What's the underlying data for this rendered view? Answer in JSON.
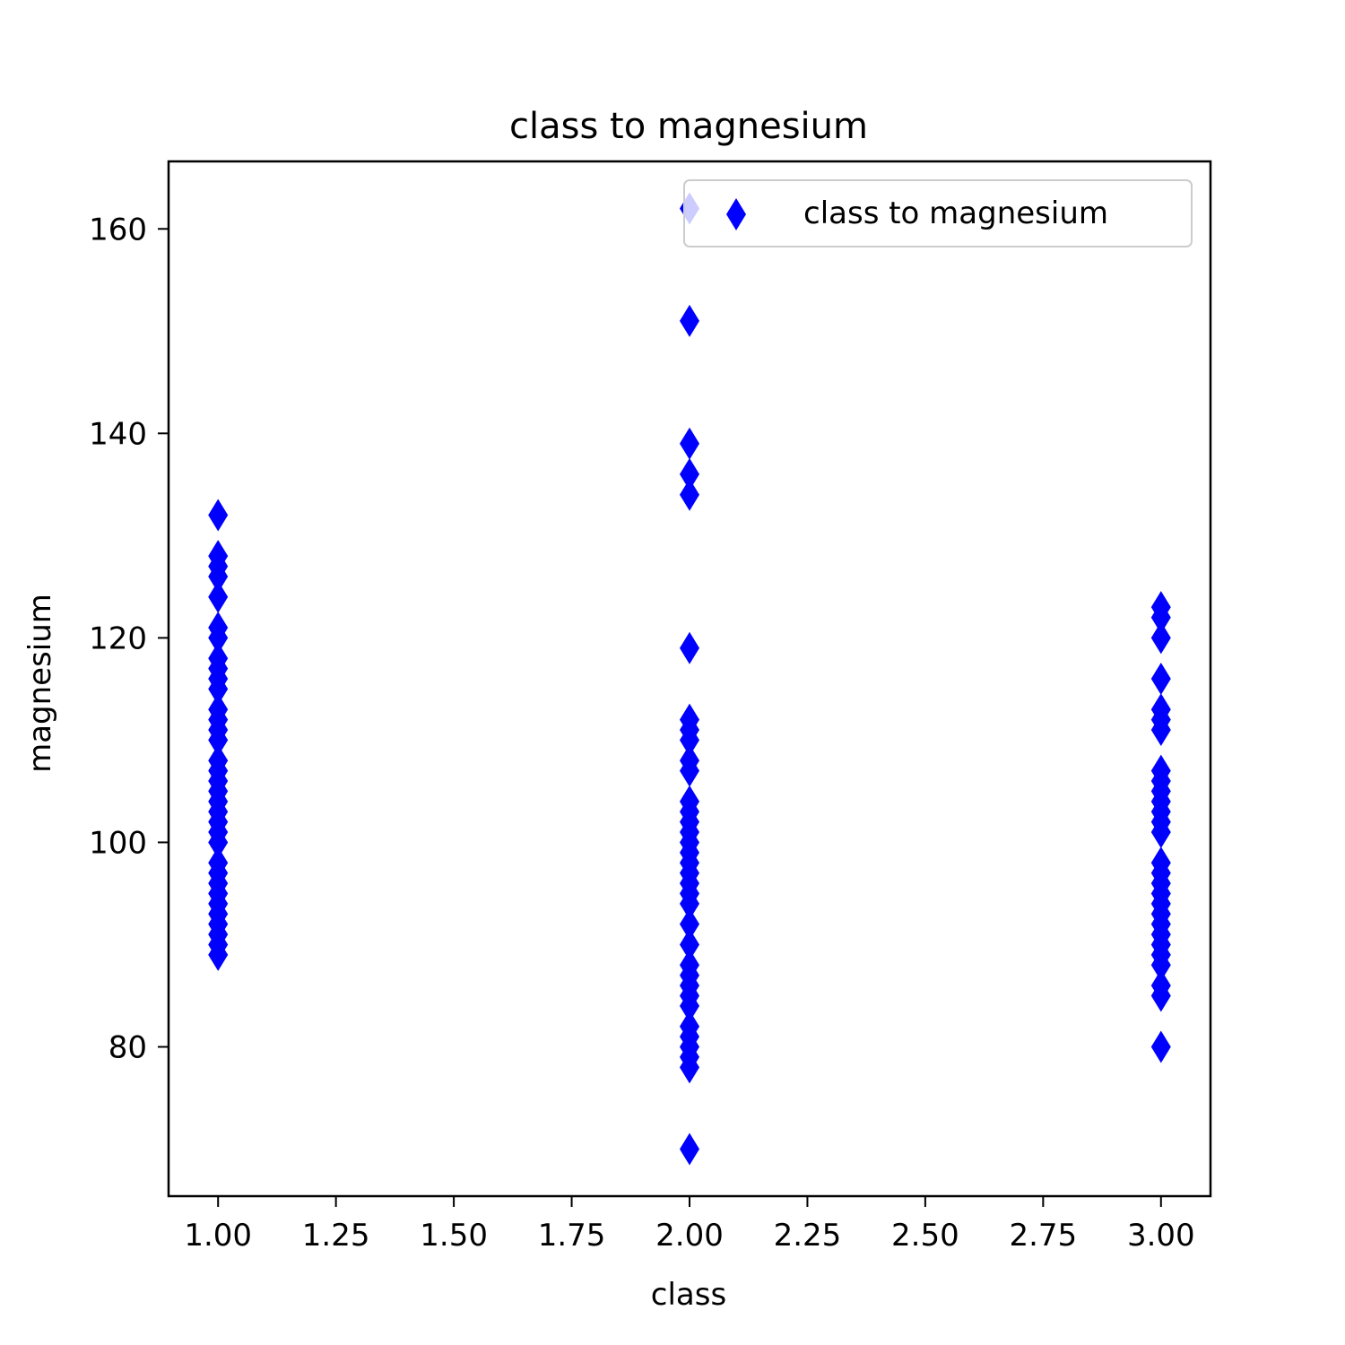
{
  "colors": {
    "marker": "#0000ff",
    "axes": "#000000",
    "legend_border": "#cccccc",
    "background": "#ffffff"
  },
  "chart_data": {
    "type": "scatter",
    "title": "class to magnesium",
    "xlabel": "class",
    "ylabel": "magnesium",
    "xlim": [
      0.895,
      3.105
    ],
    "ylim": [
      65.4,
      166.6
    ],
    "xticks": [
      1.0,
      1.25,
      1.5,
      1.75,
      2.0,
      2.25,
      2.5,
      2.75,
      3.0
    ],
    "xtick_labels": [
      "1.00",
      "1.25",
      "1.50",
      "1.75",
      "2.00",
      "2.25",
      "2.50",
      "2.75",
      "3.00"
    ],
    "yticks": [
      80,
      100,
      120,
      140,
      160
    ],
    "ytick_labels": [
      "80",
      "100",
      "120",
      "140",
      "160"
    ],
    "grid": false,
    "legend": {
      "position": "upper-right",
      "entries": [
        "class to magnesium"
      ]
    },
    "marker": "thin-diamond",
    "series": [
      {
        "name": "class to magnesium",
        "points": [
          [
            1,
            89
          ],
          [
            1,
            90
          ],
          [
            1,
            91
          ],
          [
            1,
            92
          ],
          [
            1,
            93
          ],
          [
            1,
            94
          ],
          [
            1,
            95
          ],
          [
            1,
            96
          ],
          [
            1,
            97
          ],
          [
            1,
            98
          ],
          [
            1,
            100
          ],
          [
            1,
            101
          ],
          [
            1,
            102
          ],
          [
            1,
            103
          ],
          [
            1,
            104
          ],
          [
            1,
            105
          ],
          [
            1,
            106
          ],
          [
            1,
            107
          ],
          [
            1,
            108
          ],
          [
            1,
            110
          ],
          [
            1,
            111
          ],
          [
            1,
            112
          ],
          [
            1,
            113
          ],
          [
            1,
            115
          ],
          [
            1,
            116
          ],
          [
            1,
            117
          ],
          [
            1,
            118
          ],
          [
            1,
            120
          ],
          [
            1,
            121
          ],
          [
            1,
            124
          ],
          [
            1,
            126
          ],
          [
            1,
            127
          ],
          [
            1,
            128
          ],
          [
            1,
            132
          ],
          [
            2,
            70
          ],
          [
            2,
            78
          ],
          [
            2,
            79
          ],
          [
            2,
            80
          ],
          [
            2,
            81
          ],
          [
            2,
            82
          ],
          [
            2,
            84
          ],
          [
            2,
            85
          ],
          [
            2,
            86
          ],
          [
            2,
            87
          ],
          [
            2,
            88
          ],
          [
            2,
            90
          ],
          [
            2,
            92
          ],
          [
            2,
            94
          ],
          [
            2,
            95
          ],
          [
            2,
            96
          ],
          [
            2,
            97
          ],
          [
            2,
            98
          ],
          [
            2,
            99
          ],
          [
            2,
            100
          ],
          [
            2,
            101
          ],
          [
            2,
            102
          ],
          [
            2,
            103
          ],
          [
            2,
            104
          ],
          [
            2,
            107
          ],
          [
            2,
            108
          ],
          [
            2,
            110
          ],
          [
            2,
            111
          ],
          [
            2,
            112
          ],
          [
            2,
            119
          ],
          [
            2,
            134
          ],
          [
            2,
            136
          ],
          [
            2,
            139
          ],
          [
            2,
            151
          ],
          [
            2,
            162
          ],
          [
            3,
            80
          ],
          [
            3,
            85
          ],
          [
            3,
            86
          ],
          [
            3,
            88
          ],
          [
            3,
            89
          ],
          [
            3,
            90
          ],
          [
            3,
            91
          ],
          [
            3,
            92
          ],
          [
            3,
            93
          ],
          [
            3,
            94
          ],
          [
            3,
            95
          ],
          [
            3,
            96
          ],
          [
            3,
            97
          ],
          [
            3,
            98
          ],
          [
            3,
            101
          ],
          [
            3,
            102
          ],
          [
            3,
            103
          ],
          [
            3,
            104
          ],
          [
            3,
            105
          ],
          [
            3,
            106
          ],
          [
            3,
            107
          ],
          [
            3,
            111
          ],
          [
            3,
            112
          ],
          [
            3,
            113
          ],
          [
            3,
            116
          ],
          [
            3,
            120
          ],
          [
            3,
            122
          ],
          [
            3,
            123
          ]
        ]
      }
    ]
  }
}
